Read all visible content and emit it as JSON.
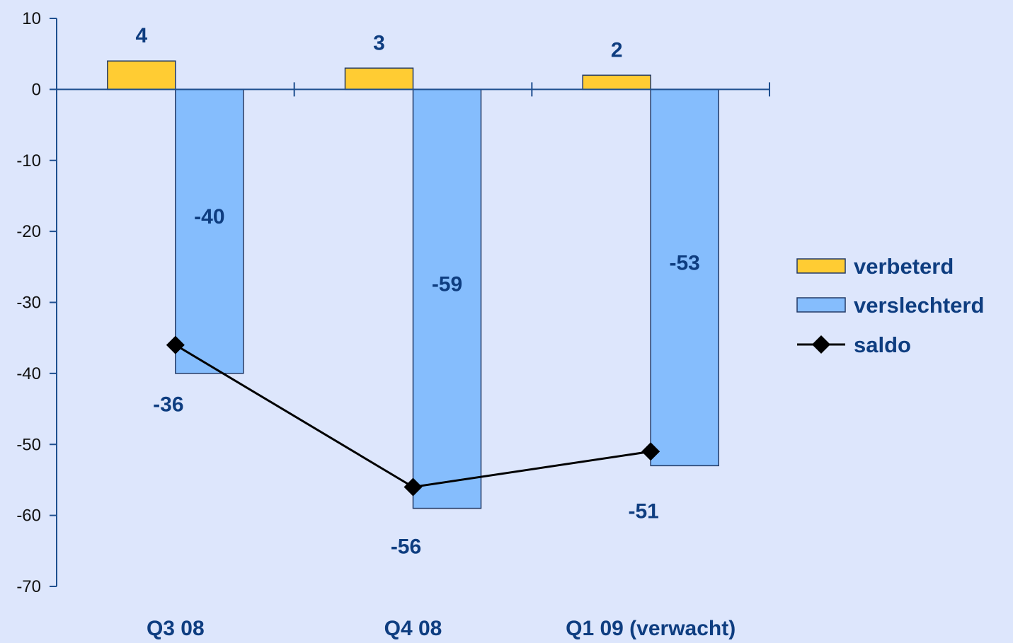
{
  "chart_data": {
    "type": "bar",
    "categories": [
      "Q3 08",
      "Q4 08",
      "Q1 09 (verwacht)"
    ],
    "series": [
      {
        "name": "verbeterd",
        "kind": "bar",
        "values": [
          4,
          3,
          2
        ],
        "color": "#ffcc33",
        "labels": [
          "4",
          "3",
          "2"
        ]
      },
      {
        "name": "verslechterd",
        "kind": "bar",
        "values": [
          -40,
          -59,
          -53
        ],
        "color": "#85bdfd",
        "labels": [
          "-40",
          "-59",
          "-53"
        ]
      },
      {
        "name": "saldo",
        "kind": "line",
        "values": [
          -36,
          -56,
          -51
        ],
        "color": "#000000",
        "marker": "diamond",
        "labels": [
          "-36",
          "-56",
          "-51"
        ]
      }
    ],
    "yticks": [
      "10",
      "0",
      "-10",
      "-20",
      "-30",
      "-40",
      "-50",
      "-60",
      "-70"
    ],
    "ylim": [
      -70,
      10
    ],
    "grid": false,
    "legend_position": "right",
    "title": "",
    "xlabel": "",
    "ylabel": ""
  },
  "colors": {
    "background": "#dde6fc",
    "axis": "#1e4f8f",
    "label_text": "#0e3d80",
    "tick_text": "#111111",
    "bar_outline": "#233a66"
  }
}
